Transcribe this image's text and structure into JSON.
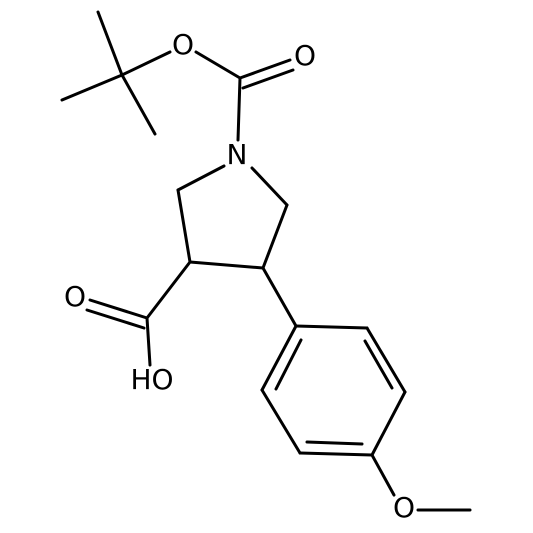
{
  "nodes": [
    {
      "label": "O"
    },
    {
      "label": "O"
    },
    {
      "label": "N"
    },
    {
      "label": "O"
    },
    {
      "label": "HO"
    },
    {
      "label": "O"
    }
  ]
}
